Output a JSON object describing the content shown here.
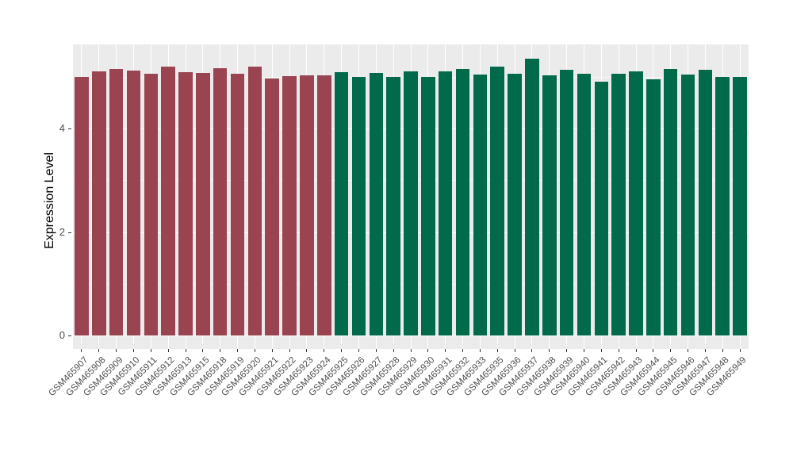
{
  "chart_data": {
    "type": "bar",
    "title": "",
    "xlabel": "",
    "ylabel": "Expression Level",
    "ylim": [
      0,
      5.62
    ],
    "yticks": [
      {
        "value": 0,
        "label": "0"
      },
      {
        "value": 2,
        "label": "2"
      },
      {
        "value": 4,
        "label": "4"
      }
    ],
    "grid": {
      "major_y": [
        0,
        2,
        4
      ],
      "minor_y": [
        1,
        3,
        5
      ],
      "vertical_at_each_category": true
    },
    "legend": "none",
    "categories": [
      "GSM465907",
      "GSM465908",
      "GSM465909",
      "GSM465910",
      "GSM465911",
      "GSM465912",
      "GSM465913",
      "GSM465915",
      "GSM465918",
      "GSM465919",
      "GSM465920",
      "GSM465921",
      "GSM465922",
      "GSM465923",
      "GSM465924",
      "GSM465925",
      "GSM465926",
      "GSM465927",
      "GSM465928",
      "GSM465929",
      "GSM465930",
      "GSM465931",
      "GSM465932",
      "GSM465933",
      "GSM465935",
      "GSM465936",
      "GSM465937",
      "GSM465938",
      "GSM465939",
      "GSM465940",
      "GSM465941",
      "GSM465942",
      "GSM465943",
      "GSM465944",
      "GSM465945",
      "GSM465946",
      "GSM465947",
      "GSM465948",
      "GSM465949"
    ],
    "series": [
      {
        "name": "Expression Level",
        "values": [
          5.0,
          5.11,
          5.15,
          5.12,
          5.06,
          5.2,
          5.09,
          5.07,
          5.16,
          5.05,
          5.19,
          4.97,
          5.01,
          5.02,
          5.03,
          5.09,
          4.99,
          5.07,
          4.99,
          5.11,
          5.0,
          5.11,
          5.15,
          5.04,
          5.19,
          5.06,
          5.35,
          5.03,
          5.13,
          5.06,
          4.91,
          5.06,
          5.1,
          4.95,
          5.15,
          5.04,
          5.13,
          5.0,
          5.0
        ]
      }
    ],
    "bar_colors": [
      "#9A4452",
      "#9A4452",
      "#9A4452",
      "#9A4452",
      "#9A4452",
      "#9A4452",
      "#9A4452",
      "#9A4452",
      "#9A4452",
      "#9A4452",
      "#9A4452",
      "#9A4452",
      "#9A4452",
      "#9A4452",
      "#9A4452",
      "#006A4B",
      "#006A4B",
      "#006A4B",
      "#006A4B",
      "#006A4B",
      "#006A4B",
      "#006A4B",
      "#006A4B",
      "#006A4B",
      "#006A4B",
      "#006A4B",
      "#006A4B",
      "#006A4B",
      "#006A4B",
      "#006A4B",
      "#006A4B",
      "#006A4B",
      "#006A4B",
      "#006A4B",
      "#006A4B",
      "#006A4B",
      "#006A4B",
      "#006A4B",
      "#006A4B"
    ],
    "color_groups": [
      {
        "color": "#9A4452",
        "from": "GSM465907",
        "to": "GSM465924",
        "count": 15
      },
      {
        "color": "#006A4B",
        "from": "GSM465925",
        "to": "GSM465949",
        "count": 24
      }
    ],
    "panel_background": "#EBEBEB",
    "figure_background": "#FFFFFF",
    "axis_text_color": "#4D4D4D",
    "tick_mark_color": "#333333"
  }
}
